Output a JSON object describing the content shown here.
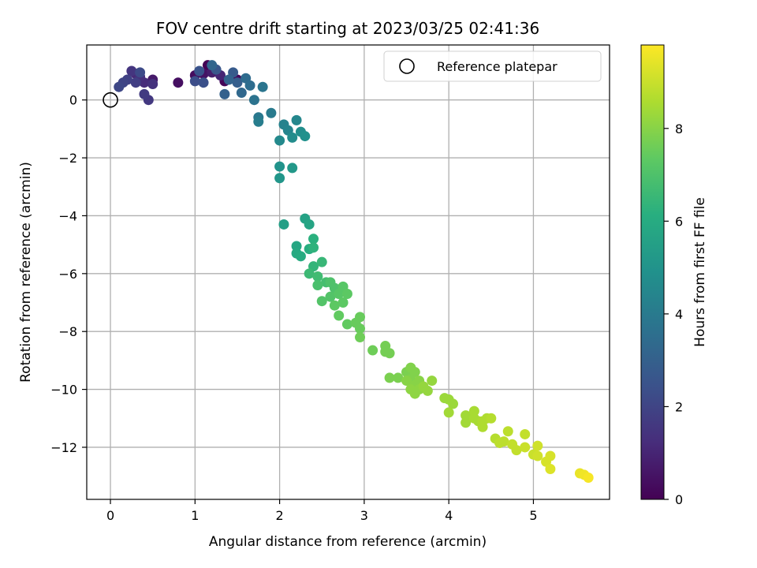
{
  "chart_data": {
    "type": "scatter",
    "title": "FOV centre drift starting at 2023/03/25 02:41:36",
    "xlabel": "Angular distance from reference (arcmin)",
    "ylabel": "Rotation from reference (arcmin)",
    "xlim": [
      -0.28,
      5.9
    ],
    "ylim": [
      -13.8,
      1.9
    ],
    "xticks": [
      0,
      1,
      2,
      3,
      4,
      5
    ],
    "yticks": [
      0,
      -2,
      -4,
      -6,
      -8,
      -10,
      -12
    ],
    "grid": true,
    "legend": {
      "position": "top-right",
      "entries": [
        "Reference platepar"
      ]
    },
    "reference_point": {
      "x": 0,
      "y": 0,
      "label": "Reference platepar"
    },
    "colorbar": {
      "label": "Hours from first FF file",
      "range": [
        0,
        9.8
      ],
      "ticks": [
        0,
        2,
        4,
        6,
        8
      ],
      "colormap": "viridis"
    },
    "series": [
      {
        "name": "",
        "points": [
          [
            1.15,
            1.2,
            0.0
          ],
          [
            1.35,
            0.65,
            0.1
          ],
          [
            1.5,
            0.7,
            0.2
          ],
          [
            1.0,
            0.85,
            0.3
          ],
          [
            0.8,
            0.6,
            0.4
          ],
          [
            1.1,
            0.9,
            0.5
          ],
          [
            1.25,
            1.0,
            0.6
          ],
          [
            0.5,
            0.7,
            0.7
          ],
          [
            1.2,
            0.95,
            0.8
          ],
          [
            1.3,
            0.85,
            1.0
          ],
          [
            0.3,
            0.9,
            1.1
          ],
          [
            0.4,
            0.6,
            1.2
          ],
          [
            0.35,
            0.8,
            1.3
          ],
          [
            0.5,
            0.55,
            1.4
          ],
          [
            0.25,
            1.0,
            1.5
          ],
          [
            0.45,
            0.0,
            1.6
          ],
          [
            0.4,
            0.2,
            1.7
          ],
          [
            0.3,
            0.6,
            1.8
          ],
          [
            0.2,
            0.7,
            1.9
          ],
          [
            0.15,
            0.6,
            2.0
          ],
          [
            0.1,
            0.45,
            2.1
          ],
          [
            0.35,
            0.95,
            2.2
          ],
          [
            1.0,
            0.65,
            2.3
          ],
          [
            1.1,
            0.6,
            2.4
          ],
          [
            1.05,
            1.0,
            2.5
          ],
          [
            1.25,
            1.05,
            2.6
          ],
          [
            1.45,
            0.95,
            2.8
          ],
          [
            1.5,
            0.6,
            2.9
          ],
          [
            1.35,
            0.2,
            3.0
          ],
          [
            1.4,
            0.7,
            3.1
          ],
          [
            1.2,
            1.2,
            3.2
          ],
          [
            1.55,
            0.25,
            3.3
          ],
          [
            1.6,
            0.75,
            3.4
          ],
          [
            1.65,
            0.5,
            3.5
          ],
          [
            1.7,
            0.0,
            3.7
          ],
          [
            1.8,
            0.45,
            3.8
          ],
          [
            1.75,
            -0.6,
            3.9
          ],
          [
            1.9,
            -0.45,
            4.0
          ],
          [
            1.75,
            -0.75,
            4.1
          ],
          [
            2.05,
            -0.85,
            4.3
          ],
          [
            2.1,
            -1.05,
            4.4
          ],
          [
            2.2,
            -0.7,
            4.5
          ],
          [
            2.0,
            -1.4,
            4.6
          ],
          [
            2.15,
            -1.3,
            4.7
          ],
          [
            2.25,
            -1.1,
            4.8
          ],
          [
            2.3,
            -1.25,
            4.9
          ],
          [
            2.0,
            -2.3,
            5.0
          ],
          [
            2.0,
            -2.7,
            5.1
          ],
          [
            2.15,
            -2.35,
            5.2
          ],
          [
            2.05,
            -4.3,
            5.5
          ],
          [
            2.3,
            -4.1,
            5.6
          ],
          [
            2.35,
            -4.3,
            5.7
          ],
          [
            2.2,
            -5.05,
            5.8
          ],
          [
            2.2,
            -5.3,
            5.9
          ],
          [
            2.25,
            -5.4,
            6.0
          ],
          [
            2.35,
            -5.15,
            6.1
          ],
          [
            2.4,
            -4.8,
            6.2
          ],
          [
            2.4,
            -5.1,
            6.3
          ],
          [
            2.4,
            -5.75,
            6.4
          ],
          [
            2.5,
            -5.6,
            6.5
          ],
          [
            2.35,
            -6.0,
            6.6
          ],
          [
            2.45,
            -6.1,
            6.7
          ],
          [
            2.55,
            -6.3,
            6.8
          ],
          [
            2.45,
            -6.4,
            6.9
          ],
          [
            2.6,
            -6.3,
            7.0
          ],
          [
            2.65,
            -6.5,
            7.0
          ],
          [
            2.5,
            -6.95,
            7.1
          ],
          [
            2.6,
            -6.8,
            7.1
          ],
          [
            2.7,
            -6.7,
            7.2
          ],
          [
            2.75,
            -6.45,
            7.2
          ],
          [
            2.8,
            -6.7,
            7.3
          ],
          [
            2.65,
            -7.1,
            7.3
          ],
          [
            2.75,
            -7.0,
            7.3
          ],
          [
            2.7,
            -7.45,
            7.4
          ],
          [
            2.8,
            -7.75,
            7.4
          ],
          [
            2.9,
            -7.7,
            7.5
          ],
          [
            2.95,
            -7.5,
            7.5
          ],
          [
            2.95,
            -7.9,
            7.5
          ],
          [
            2.95,
            -8.2,
            7.6
          ],
          [
            3.1,
            -8.65,
            7.6
          ],
          [
            3.25,
            -8.5,
            7.7
          ],
          [
            3.25,
            -8.7,
            7.7
          ],
          [
            3.3,
            -8.75,
            7.7
          ],
          [
            3.3,
            -9.6,
            7.8
          ],
          [
            3.4,
            -9.6,
            7.8
          ],
          [
            3.5,
            -9.4,
            7.8
          ],
          [
            3.55,
            -9.25,
            7.9
          ],
          [
            3.6,
            -9.4,
            7.9
          ],
          [
            3.55,
            -9.65,
            7.9
          ],
          [
            3.5,
            -9.7,
            8.0
          ],
          [
            3.6,
            -9.85,
            8.0
          ],
          [
            3.65,
            -9.7,
            8.0
          ],
          [
            3.55,
            -10.0,
            8.1
          ],
          [
            3.6,
            -10.15,
            8.1
          ],
          [
            3.65,
            -10.0,
            8.1
          ],
          [
            3.7,
            -9.9,
            8.2
          ],
          [
            3.75,
            -10.05,
            8.2
          ],
          [
            3.8,
            -9.7,
            8.2
          ],
          [
            3.95,
            -10.3,
            8.3
          ],
          [
            4.0,
            -10.35,
            8.3
          ],
          [
            4.05,
            -10.5,
            8.3
          ],
          [
            4.0,
            -10.8,
            8.4
          ],
          [
            4.2,
            -10.9,
            8.4
          ],
          [
            4.2,
            -11.15,
            8.4
          ],
          [
            4.3,
            -10.75,
            8.5
          ],
          [
            4.3,
            -11.0,
            8.5
          ],
          [
            4.35,
            -11.1,
            8.5
          ],
          [
            4.4,
            -11.3,
            8.6
          ],
          [
            4.45,
            -11.0,
            8.6
          ],
          [
            4.4,
            -11.1,
            8.6
          ],
          [
            4.5,
            -11.0,
            8.7
          ],
          [
            4.55,
            -11.7,
            8.7
          ],
          [
            4.6,
            -11.85,
            8.8
          ],
          [
            4.65,
            -11.8,
            8.8
          ],
          [
            4.7,
            -11.45,
            8.8
          ],
          [
            4.75,
            -11.9,
            8.9
          ],
          [
            4.8,
            -12.1,
            8.9
          ],
          [
            4.9,
            -11.55,
            8.9
          ],
          [
            4.9,
            -12.0,
            9.0
          ],
          [
            5.0,
            -12.25,
            9.0
          ],
          [
            5.05,
            -12.3,
            9.1
          ],
          [
            5.05,
            -11.95,
            9.1
          ],
          [
            5.15,
            -12.5,
            9.2
          ],
          [
            5.2,
            -12.3,
            9.2
          ],
          [
            5.2,
            -12.75,
            9.3
          ],
          [
            5.55,
            -12.9,
            9.5
          ],
          [
            5.6,
            -12.95,
            9.6
          ],
          [
            5.65,
            -13.05,
            9.7
          ]
        ]
      }
    ]
  }
}
